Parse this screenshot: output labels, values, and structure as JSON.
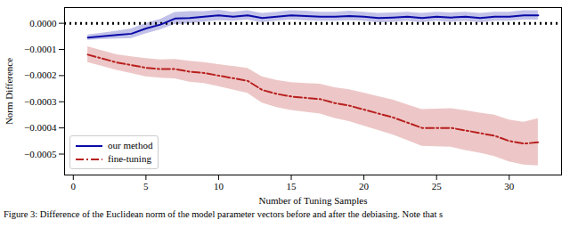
{
  "chart_data": {
    "type": "line",
    "x_label": "Number of Tuning Samples",
    "y_label": "Norm Difference",
    "caption": "Figure 3: Difference of the Euclidean norm of the model parameter vectors before and after the debiasing. Note that s",
    "x": [
      1,
      2,
      3,
      4,
      5,
      6,
      7,
      8,
      9,
      10,
      11,
      12,
      13,
      14,
      15,
      16,
      17,
      18,
      19,
      20,
      21,
      22,
      23,
      24,
      25,
      26,
      27,
      28,
      29,
      30,
      31,
      32
    ],
    "series": [
      {
        "name": "our method",
        "color": "#0a0aa8",
        "line_style": "solid",
        "values": [
          -5.5e-05,
          -5e-05,
          -4.5e-05,
          -4e-05,
          -2e-05,
          -5e-06,
          1.8e-05,
          2e-05,
          2.5e-05,
          3e-05,
          2.5e-05,
          3e-05,
          2e-05,
          2.5e-05,
          3e-05,
          2.8e-05,
          2.5e-05,
          2.5e-05,
          2.8e-05,
          2.5e-05,
          2e-05,
          2.2e-05,
          2.5e-05,
          2e-05,
          2.5e-05,
          2.2e-05,
          2.5e-05,
          2e-05,
          2.5e-05,
          2.5e-05,
          3e-05,
          3e-05
        ],
        "lower": [
          -6.5e-05,
          -6.2e-05,
          -6e-05,
          -5.8e-05,
          -4e-05,
          -2.5e-05,
          -5e-06,
          -2e-06,
          5e-06,
          1e-05,
          8e-06,
          1.2e-05,
          2e-06,
          8e-06,
          1.2e-05,
          1e-05,
          8e-06,
          8e-06,
          1e-05,
          8e-06,
          2e-06,
          4e-06,
          8e-06,
          2e-06,
          8e-06,
          4e-06,
          8e-06,
          2e-06,
          8e-06,
          8e-06,
          1.2e-05,
          1.2e-05
        ],
        "upper": [
          -4.5e-05,
          -3.8e-05,
          -3e-05,
          -2.2e-05,
          0.0,
          1.5e-05,
          4.1e-05,
          4.5e-05,
          4.5e-05,
          5e-05,
          4.2e-05,
          4.8e-05,
          3.8e-05,
          4.2e-05,
          4.8e-05,
          4.6e-05,
          4.2e-05,
          4.2e-05,
          4.6e-05,
          4.2e-05,
          3.8e-05,
          4e-05,
          4.2e-05,
          3.8e-05,
          4.2e-05,
          4e-05,
          4.2e-05,
          3.8e-05,
          4.2e-05,
          4.2e-05,
          4.8e-05,
          4.8e-05
        ]
      },
      {
        "name": "fine-tuning",
        "color": "#b8201e",
        "line_style": "dashdot",
        "values": [
          -0.00012,
          -0.000135,
          -0.00015,
          -0.00016,
          -0.00017,
          -0.000175,
          -0.000175,
          -0.000185,
          -0.00019,
          -0.0002,
          -0.00021,
          -0.00022,
          -0.000255,
          -0.00027,
          -0.00028,
          -0.000285,
          -0.00029,
          -0.000305,
          -0.000315,
          -0.00033,
          -0.000345,
          -0.00036,
          -0.00038,
          -0.0004,
          -0.0004,
          -0.0004,
          -0.00041,
          -0.00042,
          -0.00043,
          -0.00045,
          -0.00046,
          -0.000455
        ],
        "lower": [
          -0.00015,
          -0.000165,
          -0.00018,
          -0.000192,
          -0.000205,
          -0.00021,
          -0.000212,
          -0.000225,
          -0.00023,
          -0.000242,
          -0.000255,
          -0.000268,
          -0.000305,
          -0.000322,
          -0.000333,
          -0.00034,
          -0.000347,
          -0.000364,
          -0.000376,
          -0.000393,
          -0.00041,
          -0.000427,
          -0.000448,
          -0.00047,
          -0.000472,
          -0.000474,
          -0.000486,
          -0.000497,
          -0.000509,
          -0.00053,
          -0.000542,
          -0.000545
        ],
        "upper": [
          -9e-05,
          -0.000105,
          -0.00012,
          -0.000128,
          -0.000135,
          -0.00014,
          -0.000138,
          -0.000145,
          -0.00015,
          -0.000158,
          -0.000165,
          -0.000172,
          -0.000205,
          -0.000218,
          -0.000227,
          -0.00023,
          -0.000233,
          -0.000246,
          -0.000254,
          -0.000267,
          -0.00028,
          -0.000293,
          -0.000312,
          -0.00033,
          -0.000328,
          -0.000326,
          -0.000334,
          -0.000343,
          -0.000351,
          -0.00037,
          -0.000378,
          -0.000365
        ]
      }
    ],
    "hline": {
      "value": 0,
      "color": "#000000",
      "line_style": "dotted"
    },
    "xlim": [
      -0.6,
      33.6
    ],
    "xticks": [
      0,
      5,
      10,
      15,
      20,
      25,
      30
    ],
    "ylim": [
      -0.00058,
      6e-05
    ],
    "yticks": [
      {
        "value": -0.0005,
        "label": "−0.0005"
      },
      {
        "value": -0.0004,
        "label": "−0.0004"
      },
      {
        "value": -0.0003,
        "label": "−0.0003"
      },
      {
        "value": -0.0002,
        "label": "−0.0002"
      },
      {
        "value": -0.0001,
        "label": "−0.0001"
      },
      {
        "value": 0,
        "label": "0.0000"
      }
    ],
    "legend": "lower left",
    "grid": false
  }
}
